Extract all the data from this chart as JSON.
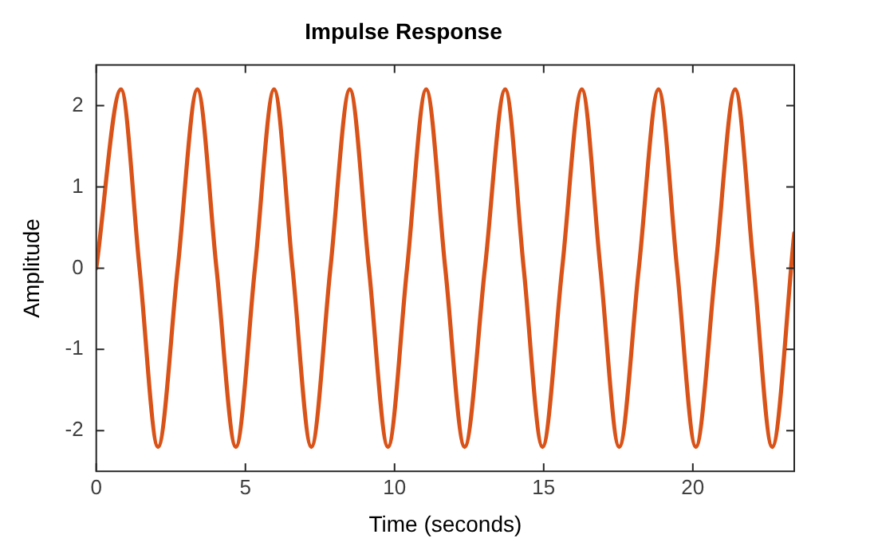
{
  "chart_data": {
    "type": "line",
    "title": "Impulse Response",
    "xlabel": "Time (seconds)",
    "ylabel": "Amplitude",
    "x": [
      0,
      0.83,
      1.45,
      2.07,
      2.73,
      3.39,
      4.03,
      4.68,
      5.32,
      5.96,
      6.58,
      7.21,
      7.85,
      8.5,
      9.14,
      9.78,
      10.42,
      11.06,
      11.7,
      12.35,
      13.03,
      13.71,
      14.33,
      14.96,
      15.62,
      16.28,
      16.9,
      17.53,
      18.19,
      18.85,
      19.47,
      20.1,
      20.76,
      21.42,
      22.04,
      22.66,
      23.4
    ],
    "series": [
      {
        "color": "#d95319",
        "values": [
          0,
          2.2,
          0,
          -2.2,
          0,
          2.2,
          0,
          -2.2,
          0,
          2.2,
          0,
          -2.2,
          0,
          2.2,
          0,
          -2.2,
          0,
          2.2,
          0,
          -2.2,
          0,
          2.2,
          0,
          -2.2,
          0,
          2.2,
          0,
          -2.2,
          0,
          2.2,
          0,
          -2.2,
          0,
          2.2,
          0,
          -2.2,
          0.43
        ]
      }
    ],
    "xlim": [
      0,
      23.4
    ],
    "xticks": [
      0,
      5,
      10,
      15,
      20
    ],
    "ylim": [
      -2.5,
      2.5
    ],
    "yticks": [
      -2,
      -1,
      0,
      1,
      2
    ],
    "grid": false,
    "legend": false,
    "marker": "none",
    "line_style": "solid"
  }
}
